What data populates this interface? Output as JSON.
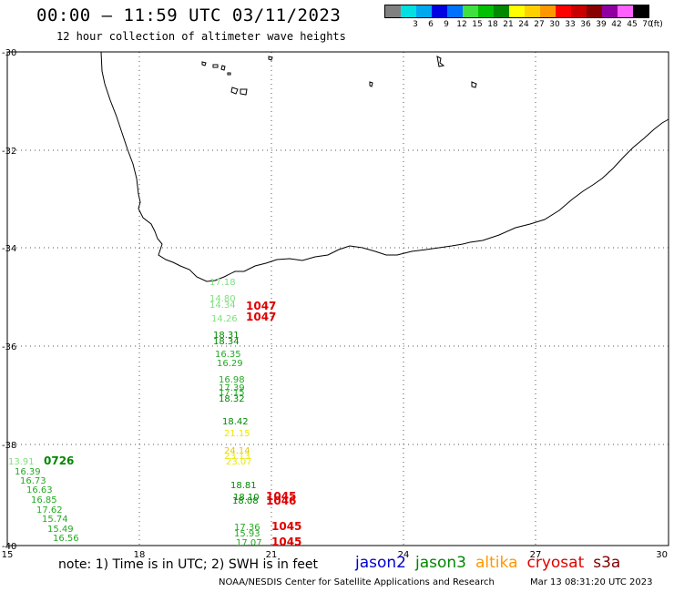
{
  "header": {
    "title": "00:00 – 11:59 UTC 03/11/2023",
    "subtitle": "12 hour collection of altimeter wave heights"
  },
  "color_scale": {
    "unit": "(ft)",
    "swatches": [
      {
        "color": "#808080",
        "label": ""
      },
      {
        "color": "#00e0e0",
        "label": "3"
      },
      {
        "color": "#00a8f0",
        "label": "6"
      },
      {
        "color": "#0000e0",
        "label": "9"
      },
      {
        "color": "#0070ff",
        "label": "12"
      },
      {
        "color": "#40e040",
        "label": "15"
      },
      {
        "color": "#00c000",
        "label": "18"
      },
      {
        "color": "#008800",
        "label": "21"
      },
      {
        "color": "#ffff00",
        "label": "24"
      },
      {
        "color": "#ffd000",
        "label": "27"
      },
      {
        "color": "#ff9800",
        "label": "30"
      },
      {
        "color": "#ff0000",
        "label": "33"
      },
      {
        "color": "#c80000",
        "label": "36"
      },
      {
        "color": "#880000",
        "label": "39"
      },
      {
        "color": "#9000a0",
        "label": "42"
      },
      {
        "color": "#ff60ff",
        "label": "45"
      },
      {
        "color": "#000000",
        "label": "70"
      }
    ]
  },
  "axes": {
    "x_ticks": [
      "15",
      "18",
      "21",
      "24",
      "27",
      "30"
    ],
    "y_ticks": [
      "-30",
      "-32",
      "-34",
      "-36",
      "-38",
      "-40"
    ]
  },
  "observations": [
    {
      "text": "17.18",
      "color": "#7ee07e"
    },
    {
      "text": "14.80",
      "color": "#7ee07e"
    },
    {
      "text": "14.34",
      "color": "#7ee07e"
    },
    {
      "text": "14.26",
      "color": "#7ee07e"
    },
    {
      "text": "1047",
      "color": "#e00000"
    },
    {
      "text": "1047",
      "color": "#e00000"
    },
    {
      "text": "18.31",
      "color": "#008800"
    },
    {
      "text": "18.34",
      "color": "#008800"
    },
    {
      "text": "16.35",
      "color": "#22aa22"
    },
    {
      "text": "16.29",
      "color": "#22aa22"
    },
    {
      "text": "16.98",
      "color": "#22aa22"
    },
    {
      "text": "17.39",
      "color": "#22aa22"
    },
    {
      "text": "17.15",
      "color": "#22aa22"
    },
    {
      "text": "18.32",
      "color": "#008800"
    },
    {
      "text": "18.42",
      "color": "#008800"
    },
    {
      "text": "21.15",
      "color": "#e8e800"
    },
    {
      "text": "24.14",
      "color": "#e8c800"
    },
    {
      "text": "23.13",
      "color": "#e8e800"
    },
    {
      "text": "23.07",
      "color": "#e8e800"
    },
    {
      "text": "18.81",
      "color": "#008800"
    },
    {
      "text": "18.10",
      "color": "#008800"
    },
    {
      "text": "18.08",
      "color": "#008800"
    },
    {
      "text": "1045",
      "color": "#e00000"
    },
    {
      "text": "1046",
      "color": "#e00000"
    },
    {
      "text": "17.36",
      "color": "#22aa22"
    },
    {
      "text": "15.93",
      "color": "#22aa22"
    },
    {
      "text": "17.07",
      "color": "#22aa22"
    },
    {
      "text": "1045",
      "color": "#e00000"
    },
    {
      "text": "1045",
      "color": "#e00000"
    },
    {
      "text": "13.91",
      "color": "#7ee07e"
    },
    {
      "text": "0726",
      "color": "#008800"
    },
    {
      "text": "16.39",
      "color": "#22aa22"
    },
    {
      "text": "16.73",
      "color": "#22aa22"
    },
    {
      "text": "16.63",
      "color": "#22aa22"
    },
    {
      "text": "16.85",
      "color": "#22aa22"
    },
    {
      "text": "17.62",
      "color": "#22aa22"
    },
    {
      "text": "15.74",
      "color": "#22aa22"
    },
    {
      "text": "15.49",
      "color": "#22aa22"
    },
    {
      "text": "16.56",
      "color": "#22aa22"
    }
  ],
  "footer": {
    "note": "note: 1) Time is in UTC; 2) SWH is in feet",
    "satellites": [
      {
        "name": "jason2",
        "color": "#0000d0"
      },
      {
        "name": "jason3",
        "color": "#008800"
      },
      {
        "name": "altika",
        "color": "#ff9800"
      },
      {
        "name": "cryosat",
        "color": "#e00000"
      },
      {
        "name": "s3a",
        "color": "#800000"
      }
    ],
    "credit": "NOAA/NESDIS Center for Satellite Applications and Research",
    "generated": "Mar 13 08:31:20 UTC 2023"
  }
}
